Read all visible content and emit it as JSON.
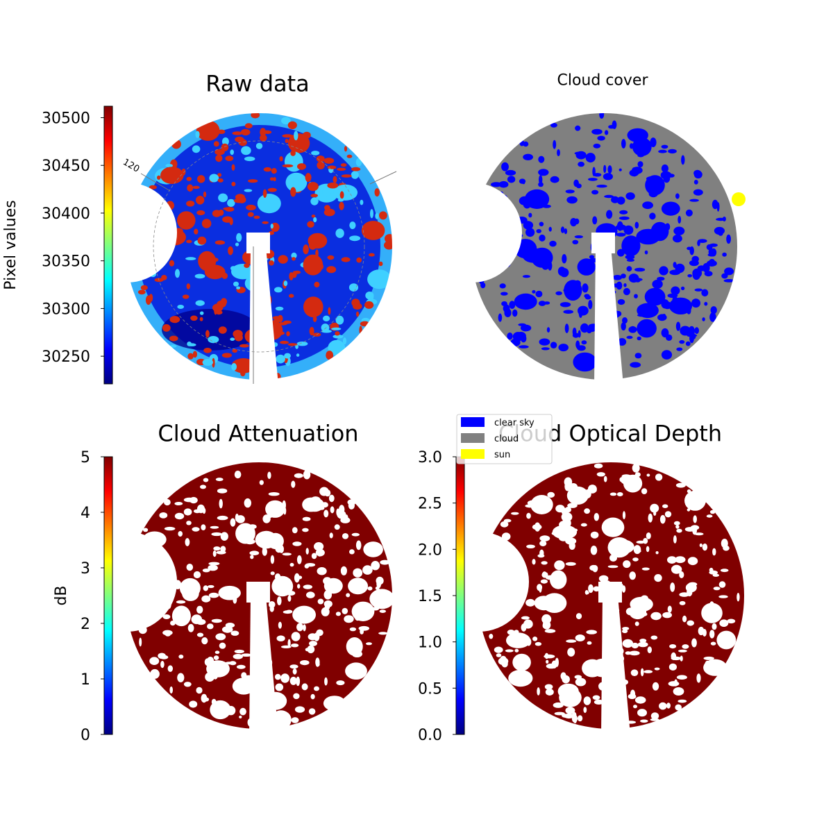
{
  "chart_data": [
    {
      "type": "image",
      "title": "Raw data",
      "annotation": "120",
      "colorbar": {
        "label": "Pixel values",
        "lim": [
          30221,
          30512
        ],
        "ticks": [
          30250,
          30300,
          30350,
          30400,
          30450,
          30500
        ],
        "cmap": "jet"
      },
      "image_colors": [
        "#0a2ee0",
        "#3fd0ff",
        "#d42a10"
      ]
    },
    {
      "type": "image",
      "title": "Cloud cover",
      "legend": [
        {
          "name": "clear sky",
          "color": "#0000ff"
        },
        {
          "name": "cloud",
          "color": "#808080"
        },
        {
          "name": "sun",
          "color": "#ffff00"
        }
      ]
    },
    {
      "type": "image",
      "title": "Cloud Attenuation",
      "colorbar": {
        "label": "dB",
        "lim": [
          0,
          5
        ],
        "ticks": [
          0,
          1,
          2,
          3,
          4,
          5
        ],
        "cmap": "jet"
      },
      "image_colors": [
        "#800000",
        "#ffffff"
      ]
    },
    {
      "type": "image",
      "title": "Cloud Optical Depth",
      "colorbar": {
        "lim": [
          0,
          3
        ],
        "ticks": [
          {
            "value": 0,
            "label": "0.0"
          },
          {
            "value": 0.5,
            "label": "0.5"
          },
          {
            "value": 1,
            "label": "1.0"
          },
          {
            "value": 1.5,
            "label": "1.5"
          },
          {
            "value": 2,
            "label": "2.0"
          },
          {
            "value": 2.5,
            "label": "2.5"
          },
          {
            "value": 3,
            "label": "3.0"
          }
        ],
        "cmap": "jet"
      },
      "image_colors": [
        "#800000",
        "#ffffff"
      ]
    }
  ]
}
